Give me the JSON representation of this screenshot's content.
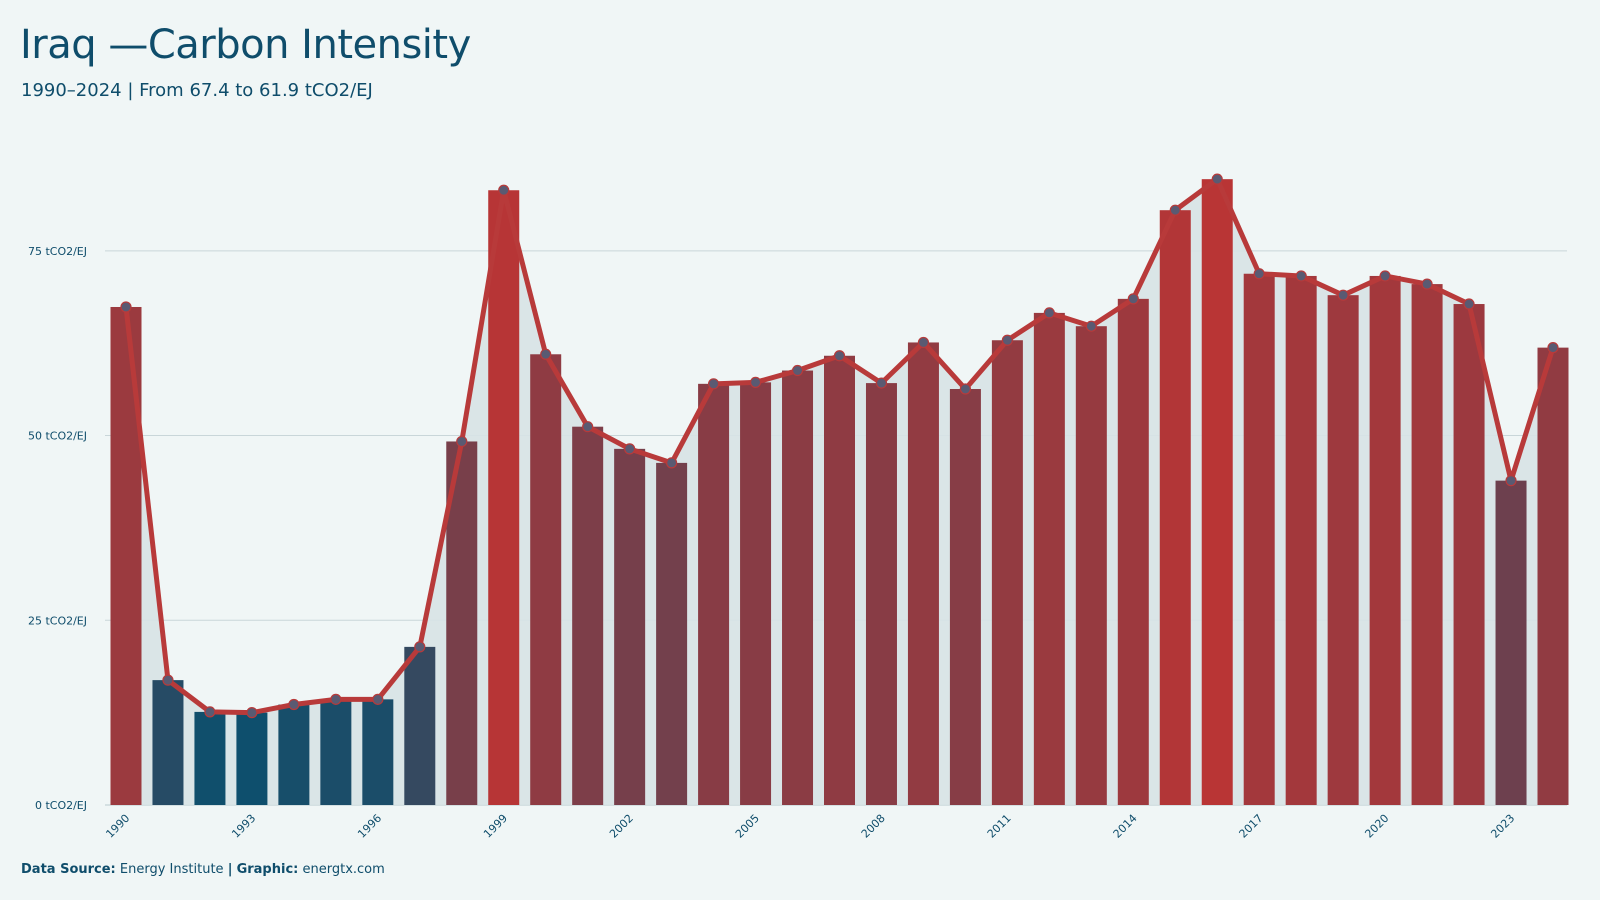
{
  "title": "Iraq —Carbon Intensity",
  "subtitle": "1990–2024 | From 67.4 to 61.9 tCO2/EJ",
  "footer": {
    "source_label": "Data Source:",
    "source_value": "Energy Institute",
    "separator": "|",
    "graphic_label": "Graphic:",
    "graphic_value": "energtx.com"
  },
  "colors": {
    "background": "#f0f6f6",
    "text": "#0f4d6b",
    "line": "#b83a3a",
    "area": "#d7e3e6",
    "bar_low": "#0e4f6d",
    "bar_high": "#b93535",
    "marker_fill": "#5a5a72"
  },
  "chart_data": {
    "type": "bar",
    "overlay": "line",
    "categories": [
      "1990",
      "1991",
      "1992",
      "1993",
      "1994",
      "1995",
      "1996",
      "1997",
      "1998",
      "1999",
      "2000",
      "2001",
      "2002",
      "2003",
      "2004",
      "2005",
      "2006",
      "2007",
      "2008",
      "2009",
      "2010",
      "2011",
      "2012",
      "2013",
      "2014",
      "2015",
      "2016",
      "2017",
      "2018",
      "2019",
      "2020",
      "2021",
      "2022",
      "2023",
      "2024"
    ],
    "values": [
      67.4,
      16.9,
      12.6,
      12.5,
      13.6,
      14.3,
      14.3,
      21.4,
      49.2,
      83.2,
      61.0,
      51.2,
      48.2,
      46.3,
      57.0,
      57.2,
      58.8,
      60.8,
      57.1,
      62.6,
      56.3,
      62.9,
      66.6,
      64.8,
      68.5,
      80.5,
      84.7,
      71.9,
      71.6,
      69.0,
      71.6,
      70.5,
      67.8,
      43.9,
      61.9
    ],
    "y_ticks": [
      "0 tCO2/EJ",
      "25 tCO2/EJ",
      "50 tCO2/EJ",
      "75 tCO2/EJ"
    ],
    "y_tick_values": [
      0,
      25,
      50,
      75
    ],
    "x_tick_labels": [
      "1990",
      "1993",
      "1996",
      "1999",
      "2002",
      "2005",
      "2008",
      "2011",
      "2014",
      "2017",
      "2020",
      "2023"
    ],
    "ylim": [
      0,
      90
    ],
    "grid": true,
    "legend": "none"
  }
}
